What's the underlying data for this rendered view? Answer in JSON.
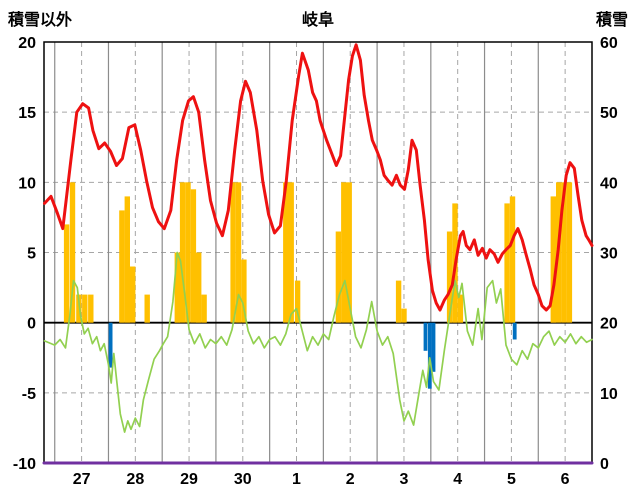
{
  "header": {
    "left_axis_title": "積雪以外",
    "title": "岐阜",
    "right_axis_title": "積雪"
  },
  "chart_data": {
    "type": "line",
    "title": "岐阜",
    "left_axis": {
      "label": "積雪以外",
      "min": -10,
      "max": 20,
      "ticks": [
        20,
        15,
        10,
        5,
        0,
        -5,
        -10
      ]
    },
    "right_axis": {
      "label": "積雪",
      "min": 0,
      "max": 60,
      "ticks": [
        60,
        50,
        40,
        30,
        20,
        10,
        0
      ]
    },
    "x_axis": {
      "labels": [
        "27",
        "28",
        "29",
        "30",
        "1",
        "2",
        "3",
        "4",
        "5",
        "6"
      ],
      "days": 10,
      "t_min": -0.2,
      "t_max": 10
    },
    "grid": {
      "solid_color": "#8c8c8c",
      "dashed_color": "#a6a6a6",
      "zero_line_color": "#000000",
      "border_color": "#000000"
    },
    "series": [
      {
        "name": "sunshine-bars",
        "type": "bar",
        "axis": "left",
        "color": "#ffc000",
        "bar_width": 0.1,
        "points": [
          [
            0.22,
            7
          ],
          [
            0.33,
            10
          ],
          [
            0.45,
            2
          ],
          [
            0.56,
            2
          ],
          [
            0.67,
            2
          ],
          [
            1.25,
            8
          ],
          [
            1.35,
            9
          ],
          [
            1.45,
            4
          ],
          [
            1.72,
            2
          ],
          [
            2.28,
            5
          ],
          [
            2.38,
            10
          ],
          [
            2.48,
            10
          ],
          [
            2.58,
            9.5
          ],
          [
            2.68,
            5
          ],
          [
            2.78,
            2
          ],
          [
            3.32,
            10
          ],
          [
            3.42,
            10
          ],
          [
            3.52,
            4.5
          ],
          [
            4.3,
            10
          ],
          [
            4.4,
            10
          ],
          [
            4.52,
            3
          ],
          [
            5.28,
            6.5
          ],
          [
            5.38,
            10
          ],
          [
            5.48,
            10
          ],
          [
            6.4,
            3
          ],
          [
            6.5,
            1
          ],
          [
            7.35,
            6.5
          ],
          [
            7.45,
            8.5
          ],
          [
            7.55,
            2
          ],
          [
            8.42,
            8.5
          ],
          [
            8.52,
            9
          ],
          [
            9.28,
            9
          ],
          [
            9.38,
            10
          ],
          [
            9.48,
            10
          ],
          [
            9.58,
            10
          ]
        ]
      },
      {
        "name": "precipitation-bars",
        "type": "bar",
        "axis": "left",
        "color": "#0070c0",
        "bar_width": 0.07,
        "points": [
          [
            1.04,
            -3.2
          ],
          [
            6.9,
            -2.0
          ],
          [
            6.98,
            -4.7
          ],
          [
            7.05,
            -3.5
          ],
          [
            8.56,
            -1.2
          ]
        ]
      },
      {
        "name": "green-line",
        "type": "line",
        "axis": "left",
        "color": "#92d050",
        "width": 1.7,
        "points": [
          [
            -0.19,
            -1.3
          ],
          [
            0.0,
            -1.6
          ],
          [
            0.1,
            -1.2
          ],
          [
            0.2,
            -1.8
          ],
          [
            0.28,
            0.5
          ],
          [
            0.35,
            3.0
          ],
          [
            0.42,
            2.5
          ],
          [
            0.48,
            0.5
          ],
          [
            0.55,
            -0.8
          ],
          [
            0.62,
            -0.4
          ],
          [
            0.7,
            -1.5
          ],
          [
            0.78,
            -1.0
          ],
          [
            0.85,
            -2.0
          ],
          [
            0.92,
            -1.5
          ],
          [
            1.0,
            -3.0
          ],
          [
            1.05,
            -4.3
          ],
          [
            1.1,
            -2.2
          ],
          [
            1.15,
            -4.0
          ],
          [
            1.22,
            -6.5
          ],
          [
            1.3,
            -7.8
          ],
          [
            1.36,
            -7.0
          ],
          [
            1.42,
            -7.6
          ],
          [
            1.5,
            -6.8
          ],
          [
            1.58,
            -7.4
          ],
          [
            1.65,
            -5.5
          ],
          [
            1.75,
            -4.0
          ],
          [
            1.85,
            -2.6
          ],
          [
            1.95,
            -2.0
          ],
          [
            2.02,
            -1.5
          ],
          [
            2.1,
            -1.0
          ],
          [
            2.2,
            1.5
          ],
          [
            2.28,
            5.0
          ],
          [
            2.34,
            4.4
          ],
          [
            2.42,
            2.0
          ],
          [
            2.5,
            -0.5
          ],
          [
            2.6,
            -1.5
          ],
          [
            2.7,
            -0.8
          ],
          [
            2.8,
            -1.8
          ],
          [
            2.9,
            -1.2
          ],
          [
            3.0,
            -1.5
          ],
          [
            3.1,
            -1.0
          ],
          [
            3.2,
            -1.6
          ],
          [
            3.3,
            -0.5
          ],
          [
            3.42,
            2.0
          ],
          [
            3.5,
            1.4
          ],
          [
            3.6,
            -0.6
          ],
          [
            3.7,
            -1.5
          ],
          [
            3.8,
            -1.0
          ],
          [
            3.9,
            -1.8
          ],
          [
            4.0,
            -1.2
          ],
          [
            4.1,
            -1.0
          ],
          [
            4.2,
            -1.6
          ],
          [
            4.3,
            -0.8
          ],
          [
            4.4,
            0.6
          ],
          [
            4.5,
            1.0
          ],
          [
            4.6,
            -0.5
          ],
          [
            4.7,
            -2.0
          ],
          [
            4.8,
            -1.0
          ],
          [
            4.9,
            -1.6
          ],
          [
            5.0,
            -0.8
          ],
          [
            5.1,
            -1.2
          ],
          [
            5.2,
            0.5
          ],
          [
            5.3,
            2.0
          ],
          [
            5.4,
            3.0
          ],
          [
            5.5,
            1.0
          ],
          [
            5.6,
            -1.0
          ],
          [
            5.7,
            -1.8
          ],
          [
            5.8,
            -0.5
          ],
          [
            5.9,
            1.5
          ],
          [
            6.0,
            -0.6
          ],
          [
            6.1,
            -1.6
          ],
          [
            6.2,
            -1.0
          ],
          [
            6.3,
            -2.2
          ],
          [
            6.42,
            -5.5
          ],
          [
            6.5,
            -7.0
          ],
          [
            6.58,
            -6.3
          ],
          [
            6.68,
            -7.3
          ],
          [
            6.78,
            -5.0
          ],
          [
            6.85,
            -3.4
          ],
          [
            6.92,
            -4.6
          ],
          [
            6.98,
            -2.5
          ],
          [
            7.05,
            -4.2
          ],
          [
            7.15,
            -4.8
          ],
          [
            7.25,
            -2.0
          ],
          [
            7.35,
            0.5
          ],
          [
            7.45,
            3.0
          ],
          [
            7.52,
            1.8
          ],
          [
            7.58,
            2.8
          ],
          [
            7.68,
            -0.6
          ],
          [
            7.78,
            -1.6
          ],
          [
            7.88,
            1.0
          ],
          [
            7.95,
            -1.2
          ],
          [
            8.05,
            2.5
          ],
          [
            8.15,
            3.0
          ],
          [
            8.22,
            1.4
          ],
          [
            8.3,
            2.4
          ],
          [
            8.4,
            -1.6
          ],
          [
            8.5,
            -2.6
          ],
          [
            8.6,
            -3.0
          ],
          [
            8.7,
            -2.0
          ],
          [
            8.8,
            -2.6
          ],
          [
            8.9,
            -1.5
          ],
          [
            9.0,
            -1.8
          ],
          [
            9.1,
            -1.0
          ],
          [
            9.2,
            -0.6
          ],
          [
            9.3,
            -1.6
          ],
          [
            9.4,
            -1.0
          ],
          [
            9.5,
            -1.4
          ],
          [
            9.6,
            -0.8
          ],
          [
            9.7,
            -1.5
          ],
          [
            9.8,
            -1.0
          ],
          [
            9.9,
            -1.4
          ],
          [
            10.0,
            -1.2
          ]
        ]
      },
      {
        "name": "temperature-line",
        "type": "line",
        "axis": "left",
        "color": "#ee1111",
        "width": 3,
        "points": [
          [
            -0.19,
            8.5
          ],
          [
            -0.07,
            9.0
          ],
          [
            0.05,
            7.8
          ],
          [
            0.15,
            6.7
          ],
          [
            0.3,
            11.6
          ],
          [
            0.41,
            15.0
          ],
          [
            0.52,
            15.6
          ],
          [
            0.63,
            15.3
          ],
          [
            0.71,
            13.7
          ],
          [
            0.82,
            12.4
          ],
          [
            0.93,
            12.8
          ],
          [
            1.04,
            12.2
          ],
          [
            1.15,
            11.2
          ],
          [
            1.26,
            11.7
          ],
          [
            1.38,
            13.9
          ],
          [
            1.49,
            14.1
          ],
          [
            1.6,
            12.3
          ],
          [
            1.71,
            10.1
          ],
          [
            1.82,
            8.2
          ],
          [
            1.93,
            7.2
          ],
          [
            2.04,
            6.7
          ],
          [
            2.16,
            8.0
          ],
          [
            2.27,
            11.6
          ],
          [
            2.38,
            14.4
          ],
          [
            2.49,
            15.8
          ],
          [
            2.58,
            16.1
          ],
          [
            2.68,
            15.0
          ],
          [
            2.79,
            11.6
          ],
          [
            2.9,
            8.7
          ],
          [
            3.01,
            7.1
          ],
          [
            3.12,
            6.2
          ],
          [
            3.23,
            8.0
          ],
          [
            3.35,
            12.3
          ],
          [
            3.46,
            15.8
          ],
          [
            3.55,
            17.2
          ],
          [
            3.64,
            16.4
          ],
          [
            3.76,
            13.7
          ],
          [
            3.87,
            10.1
          ],
          [
            3.98,
            7.7
          ],
          [
            4.09,
            6.4
          ],
          [
            4.2,
            6.9
          ],
          [
            4.31,
            10.1
          ],
          [
            4.42,
            14.4
          ],
          [
            4.54,
            17.6
          ],
          [
            4.61,
            19.2
          ],
          [
            4.72,
            18.0
          ],
          [
            4.8,
            16.4
          ],
          [
            4.87,
            15.8
          ],
          [
            4.94,
            14.4
          ],
          [
            5.06,
            13.0
          ],
          [
            5.13,
            12.3
          ],
          [
            5.24,
            11.2
          ],
          [
            5.32,
            11.9
          ],
          [
            5.39,
            14.4
          ],
          [
            5.47,
            17.3
          ],
          [
            5.54,
            19.0
          ],
          [
            5.61,
            19.8
          ],
          [
            5.69,
            18.7
          ],
          [
            5.76,
            16.2
          ],
          [
            5.84,
            14.4
          ],
          [
            5.91,
            13.0
          ],
          [
            5.99,
            12.3
          ],
          [
            6.06,
            11.6
          ],
          [
            6.13,
            10.5
          ],
          [
            6.21,
            10.1
          ],
          [
            6.28,
            9.8
          ],
          [
            6.36,
            10.5
          ],
          [
            6.43,
            9.8
          ],
          [
            6.51,
            9.5
          ],
          [
            6.58,
            10.9
          ],
          [
            6.65,
            13.0
          ],
          [
            6.73,
            12.3
          ],
          [
            6.8,
            9.8
          ],
          [
            6.88,
            7.3
          ],
          [
            6.95,
            4.5
          ],
          [
            7.03,
            2.3
          ],
          [
            7.1,
            1.4
          ],
          [
            7.17,
            0.9
          ],
          [
            7.25,
            1.6
          ],
          [
            7.32,
            2.0
          ],
          [
            7.4,
            2.7
          ],
          [
            7.47,
            4.5
          ],
          [
            7.55,
            6.2
          ],
          [
            7.6,
            6.5
          ],
          [
            7.66,
            5.5
          ],
          [
            7.73,
            5.2
          ],
          [
            7.81,
            5.9
          ],
          [
            7.88,
            4.8
          ],
          [
            7.96,
            5.3
          ],
          [
            8.03,
            4.6
          ],
          [
            8.1,
            5.2
          ],
          [
            8.18,
            4.9
          ],
          [
            8.25,
            4.3
          ],
          [
            8.33,
            4.9
          ],
          [
            8.4,
            5.2
          ],
          [
            8.48,
            5.5
          ],
          [
            8.55,
            6.2
          ],
          [
            8.62,
            6.7
          ],
          [
            8.7,
            5.9
          ],
          [
            8.77,
            4.9
          ],
          [
            8.85,
            3.8
          ],
          [
            8.92,
            2.7
          ],
          [
            9.0,
            2.0
          ],
          [
            9.07,
            1.2
          ],
          [
            9.15,
            0.9
          ],
          [
            9.22,
            1.2
          ],
          [
            9.29,
            2.7
          ],
          [
            9.37,
            5.2
          ],
          [
            9.44,
            8.0
          ],
          [
            9.52,
            10.5
          ],
          [
            9.59,
            11.4
          ],
          [
            9.67,
            11.0
          ],
          [
            9.74,
            9.1
          ],
          [
            9.81,
            7.3
          ],
          [
            9.89,
            6.2
          ],
          [
            9.94,
            5.9
          ],
          [
            10.0,
            5.5
          ]
        ]
      },
      {
        "name": "snow-depth-line",
        "type": "line",
        "axis": "right",
        "color": "#7030a0",
        "width": 3,
        "points": [
          [
            -0.2,
            0
          ],
          [
            10,
            0
          ]
        ]
      }
    ]
  }
}
